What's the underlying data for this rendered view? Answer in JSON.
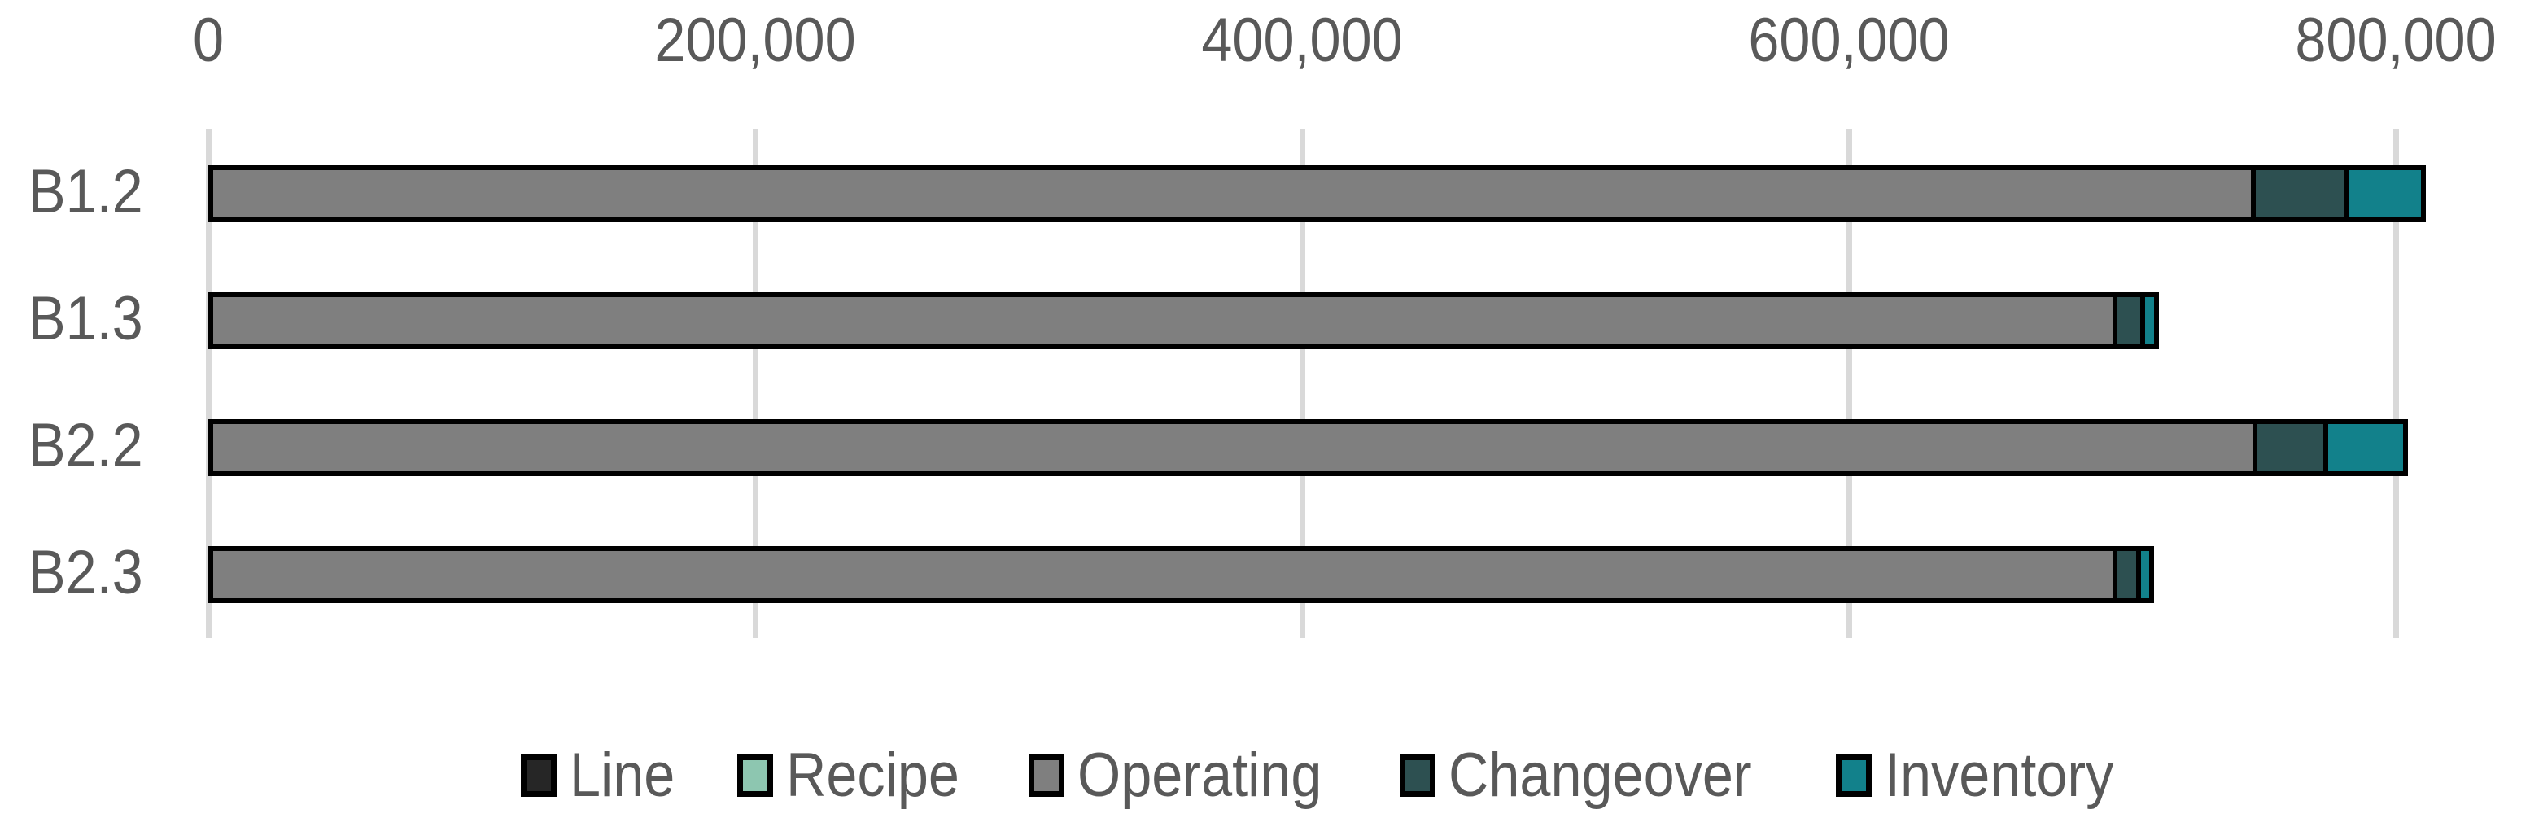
{
  "chart_data": {
    "type": "bar",
    "orientation": "horizontal",
    "stacked": true,
    "title": "",
    "categories": [
      "B1.2",
      "B1.3",
      "B2.2",
      "B2.3"
    ],
    "series": [
      {
        "name": "Line",
        "color": "#262626",
        "values": [
          0,
          0,
          0,
          0
        ]
      },
      {
        "name": "Recipe",
        "color": "#8dc6b0",
        "values": [
          0,
          0,
          0,
          0
        ]
      },
      {
        "name": "Operating",
        "color": "#7f7f7f",
        "values": [
          747000,
          696500,
          747500,
          696500
        ]
      },
      {
        "name": "Changeover",
        "color": "#2d5051",
        "values": [
          34000,
          10000,
          26000,
          8500
        ]
      },
      {
        "name": "Inventory",
        "color": "#12818b",
        "values": [
          30000,
          7000,
          31000,
          6500
        ]
      }
    ],
    "totals": [
      811000,
      713500,
      804500,
      711500
    ],
    "x_axis": {
      "position": "top",
      "min": 0,
      "max": 800000,
      "tick_interval": 200000,
      "tick_values": [
        0,
        200000,
        400000,
        600000,
        800000
      ],
      "tick_labels": [
        "0",
        "200,000",
        "400,000",
        "600,000",
        "800,000"
      ]
    },
    "grid": true,
    "legend_position": "bottom",
    "colors": {
      "bar_border": "#000000",
      "gridline": "#d9d9d9",
      "text": "#595959",
      "background": "#ffffff"
    }
  }
}
